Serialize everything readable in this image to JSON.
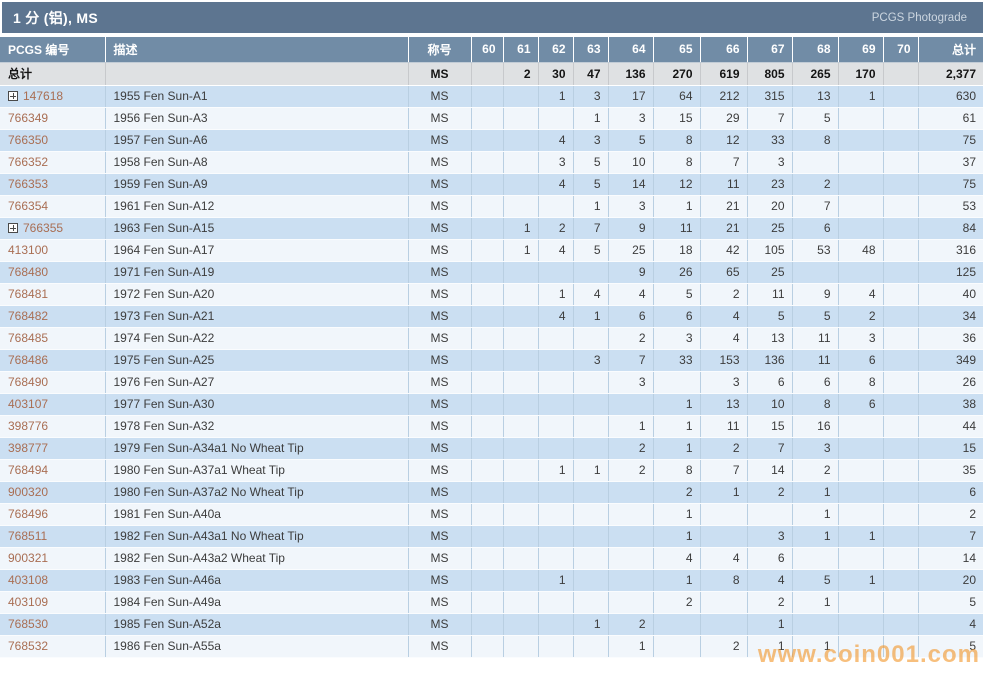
{
  "title_bar": {
    "title": "1 分 (铝), MS",
    "right_link": "PCGS Photograde"
  },
  "watermark": "www.coin001.com",
  "colors": {
    "title_bar_bg": "#5d7590",
    "header_bg": "#718ca6",
    "total_row_bg": "#dfe1e3",
    "row_blue": "#cbdff2",
    "row_light": "#f1f6fb",
    "gridline": "#b9cfe2",
    "pcgs_number_link": "#a96e53",
    "watermark_orange": "#f29426"
  },
  "table": {
    "columns": [
      "PCGS 编号",
      "描述",
      "称号",
      "60",
      "61",
      "62",
      "63",
      "64",
      "65",
      "66",
      "67",
      "68",
      "69",
      "70",
      "总计"
    ],
    "total_row": {
      "label": "总计",
      "desc": "",
      "designation": "MS",
      "grades": [
        "",
        "2",
        "30",
        "47",
        "136",
        "270",
        "619",
        "805",
        "265",
        "170",
        ""
      ],
      "total": "2,377"
    },
    "rows": [
      {
        "pcgs_no": "147618",
        "expandable": true,
        "desc": "1955 Fen Sun-A1",
        "designation": "MS",
        "grades": [
          "",
          "",
          "1",
          "3",
          "17",
          "64",
          "212",
          "315",
          "13",
          "1",
          ""
        ],
        "total": "630"
      },
      {
        "pcgs_no": "766349",
        "expandable": false,
        "desc": "1956 Fen Sun-A3",
        "designation": "MS",
        "grades": [
          "",
          "",
          "",
          "1",
          "3",
          "15",
          "29",
          "7",
          "5",
          "",
          ""
        ],
        "total": "61"
      },
      {
        "pcgs_no": "766350",
        "expandable": false,
        "desc": "1957 Fen Sun-A6",
        "designation": "MS",
        "grades": [
          "",
          "",
          "4",
          "3",
          "5",
          "8",
          "12",
          "33",
          "8",
          "",
          ""
        ],
        "total": "75"
      },
      {
        "pcgs_no": "766352",
        "expandable": false,
        "desc": "1958 Fen Sun-A8",
        "designation": "MS",
        "grades": [
          "",
          "",
          "3",
          "5",
          "10",
          "8",
          "7",
          "3",
          "",
          "",
          ""
        ],
        "total": "37"
      },
      {
        "pcgs_no": "766353",
        "expandable": false,
        "desc": "1959 Fen Sun-A9",
        "designation": "MS",
        "grades": [
          "",
          "",
          "4",
          "5",
          "14",
          "12",
          "11",
          "23",
          "2",
          "",
          ""
        ],
        "total": "75"
      },
      {
        "pcgs_no": "766354",
        "expandable": false,
        "desc": "1961 Fen Sun-A12",
        "designation": "MS",
        "grades": [
          "",
          "",
          "",
          "1",
          "3",
          "1",
          "21",
          "20",
          "7",
          "",
          ""
        ],
        "total": "53"
      },
      {
        "pcgs_no": "766355",
        "expandable": true,
        "desc": "1963 Fen Sun-A15",
        "designation": "MS",
        "grades": [
          "",
          "1",
          "2",
          "7",
          "9",
          "11",
          "21",
          "25",
          "6",
          "",
          ""
        ],
        "total": "84"
      },
      {
        "pcgs_no": "413100",
        "expandable": false,
        "desc": "1964 Fen Sun-A17",
        "designation": "MS",
        "grades": [
          "",
          "1",
          "4",
          "5",
          "25",
          "18",
          "42",
          "105",
          "53",
          "48",
          ""
        ],
        "total": "316"
      },
      {
        "pcgs_no": "768480",
        "expandable": false,
        "desc": "1971 Fen Sun-A19",
        "designation": "MS",
        "grades": [
          "",
          "",
          "",
          "",
          "9",
          "26",
          "65",
          "25",
          "",
          "",
          ""
        ],
        "total": "125"
      },
      {
        "pcgs_no": "768481",
        "expandable": false,
        "desc": "1972 Fen Sun-A20",
        "designation": "MS",
        "grades": [
          "",
          "",
          "1",
          "4",
          "4",
          "5",
          "2",
          "11",
          "9",
          "4",
          ""
        ],
        "total": "40"
      },
      {
        "pcgs_no": "768482",
        "expandable": false,
        "desc": "1973 Fen Sun-A21",
        "designation": "MS",
        "grades": [
          "",
          "",
          "4",
          "1",
          "6",
          "6",
          "4",
          "5",
          "5",
          "2",
          ""
        ],
        "total": "34"
      },
      {
        "pcgs_no": "768485",
        "expandable": false,
        "desc": "1974 Fen Sun-A22",
        "designation": "MS",
        "grades": [
          "",
          "",
          "",
          "",
          "2",
          "3",
          "4",
          "13",
          "11",
          "3",
          ""
        ],
        "total": "36"
      },
      {
        "pcgs_no": "768486",
        "expandable": false,
        "desc": "1975 Fen Sun-A25",
        "designation": "MS",
        "grades": [
          "",
          "",
          "",
          "3",
          "7",
          "33",
          "153",
          "136",
          "11",
          "6",
          ""
        ],
        "total": "349"
      },
      {
        "pcgs_no": "768490",
        "expandable": false,
        "desc": "1976 Fen Sun-A27",
        "designation": "MS",
        "grades": [
          "",
          "",
          "",
          "",
          "3",
          "",
          "3",
          "6",
          "6",
          "8",
          ""
        ],
        "total": "26"
      },
      {
        "pcgs_no": "403107",
        "expandable": false,
        "desc": "1977 Fen Sun-A30",
        "designation": "MS",
        "grades": [
          "",
          "",
          "",
          "",
          "",
          "1",
          "13",
          "10",
          "8",
          "6",
          ""
        ],
        "total": "38"
      },
      {
        "pcgs_no": "398776",
        "expandable": false,
        "desc": "1978 Fen Sun-A32",
        "designation": "MS",
        "grades": [
          "",
          "",
          "",
          "",
          "1",
          "1",
          "11",
          "15",
          "16",
          "",
          ""
        ],
        "total": "44"
      },
      {
        "pcgs_no": "398777",
        "expandable": false,
        "desc": "1979 Fen Sun-A34a1 No Wheat Tip",
        "designation": "MS",
        "grades": [
          "",
          "",
          "",
          "",
          "2",
          "1",
          "2",
          "7",
          "3",
          "",
          ""
        ],
        "total": "15"
      },
      {
        "pcgs_no": "768494",
        "expandable": false,
        "desc": "1980 Fen Sun-A37a1 Wheat Tip",
        "designation": "MS",
        "grades": [
          "",
          "",
          "1",
          "1",
          "2",
          "8",
          "7",
          "14",
          "2",
          "",
          ""
        ],
        "total": "35"
      },
      {
        "pcgs_no": "900320",
        "expandable": false,
        "desc": "1980 Fen Sun-A37a2 No Wheat Tip",
        "designation": "MS",
        "grades": [
          "",
          "",
          "",
          "",
          "",
          "2",
          "1",
          "2",
          "1",
          "",
          ""
        ],
        "total": "6"
      },
      {
        "pcgs_no": "768496",
        "expandable": false,
        "desc": "1981 Fen Sun-A40a",
        "designation": "MS",
        "grades": [
          "",
          "",
          "",
          "",
          "",
          "1",
          "",
          "",
          "1",
          "",
          ""
        ],
        "total": "2"
      },
      {
        "pcgs_no": "768511",
        "expandable": false,
        "desc": "1982 Fen Sun-A43a1 No Wheat Tip",
        "designation": "MS",
        "grades": [
          "",
          "",
          "",
          "",
          "",
          "1",
          "",
          "3",
          "1",
          "1",
          ""
        ],
        "total": "7"
      },
      {
        "pcgs_no": "900321",
        "expandable": false,
        "desc": "1982 Fen Sun-A43a2 Wheat Tip",
        "designation": "MS",
        "grades": [
          "",
          "",
          "",
          "",
          "",
          "4",
          "4",
          "6",
          "",
          "",
          ""
        ],
        "total": "14"
      },
      {
        "pcgs_no": "403108",
        "expandable": false,
        "desc": "1983 Fen Sun-A46a",
        "designation": "MS",
        "grades": [
          "",
          "",
          "1",
          "",
          "",
          "1",
          "8",
          "4",
          "5",
          "1",
          ""
        ],
        "total": "20"
      },
      {
        "pcgs_no": "403109",
        "expandable": false,
        "desc": "1984 Fen Sun-A49a",
        "designation": "MS",
        "grades": [
          "",
          "",
          "",
          "",
          "",
          "2",
          "",
          "2",
          "1",
          "",
          ""
        ],
        "total": "5"
      },
      {
        "pcgs_no": "768530",
        "expandable": false,
        "desc": "1985 Fen Sun-A52a",
        "designation": "MS",
        "grades": [
          "",
          "",
          "",
          "1",
          "2",
          "",
          "",
          "1",
          "",
          "",
          ""
        ],
        "total": "4"
      },
      {
        "pcgs_no": "768532",
        "expandable": false,
        "desc": "1986 Fen Sun-A55a",
        "designation": "MS",
        "grades": [
          "",
          "",
          "",
          "",
          "1",
          "",
          "2",
          "1",
          "1",
          "",
          ""
        ],
        "total": "5"
      }
    ]
  }
}
